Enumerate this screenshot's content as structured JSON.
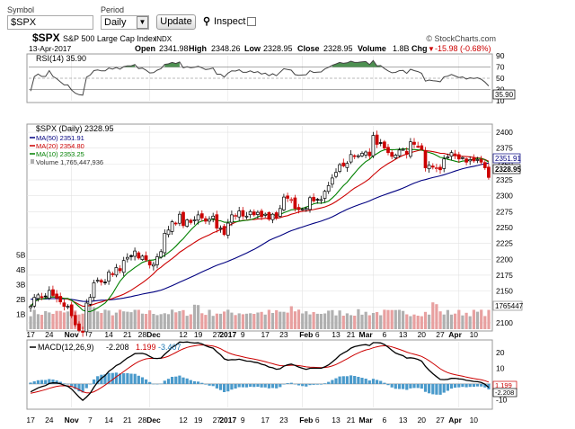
{
  "controls": {
    "symbol_label": "Symbol",
    "symbol_value": "$SPX",
    "period_label": "Period",
    "period_value": "Daily",
    "update_label": "Update",
    "inspect_label": "Inspect"
  },
  "header": {
    "symbol": "$SPX",
    "name": "S&P 500 Large Cap Index",
    "exchange": "INDX",
    "date": "13-Apr-2017",
    "open_label": "Open",
    "open": "2341.98",
    "high_label": "High",
    "high": "2348.26",
    "low_label": "Low",
    "low": "2328.95",
    "close_label": "Close",
    "close": "2328.95",
    "volume_label": "Volume",
    "volume": "1.8B",
    "chg_label": "Chg",
    "chg": "-15.98 (-0.68%)",
    "chg_arrow": "▼",
    "brand": "© StockCharts.com"
  },
  "rsi": {
    "label": "RSI(14) 35.90",
    "value_tag": "35.90",
    "ticks": [
      90,
      70,
      50,
      30,
      10
    ]
  },
  "price": {
    "legend_main": "$SPX (Daily) 2328.95",
    "ma50_label": "MA(50) 2351.91",
    "ma20_label": "MA(20) 2354.80",
    "ma10_label": "MA(10) 2353.25",
    "volume_label": "Volume 1,765,447,936",
    "ma50_tag": "2351.91",
    "close_tag": "2328.95",
    "volume_tag": "1765447",
    "ticks": [
      2400,
      2375,
      2350,
      2325,
      2300,
      2275,
      2250,
      2225,
      2200,
      2175,
      2150,
      2125,
      2100
    ],
    "volume_ticks": [
      "5B",
      "4B",
      "3B",
      "2B",
      "1B"
    ]
  },
  "macd": {
    "label_prefix": "MACD(12,26,9)",
    "macd_value": "-2.208",
    "signal_value": "1.199",
    "hist_value": "-3.407",
    "macd_tag": "-2.208",
    "signal_tag": "1.199",
    "ticks": [
      20,
      10,
      0,
      -10
    ]
  },
  "xaxis": {
    "labels": [
      "17",
      "24",
      "Nov",
      "7",
      "14",
      "21",
      "28",
      "Dec",
      "12",
      "19",
      "27",
      "2017",
      "9",
      "17",
      "23",
      "Feb",
      "6",
      "13",
      "21",
      "Mar",
      "6",
      "13",
      "20",
      "27",
      "Apr",
      "10"
    ],
    "bold": [
      "Nov",
      "Dec",
      "2017",
      "Feb",
      "Mar",
      "Apr"
    ]
  },
  "colors": {
    "up": "#000000",
    "down": "#cc0000",
    "ma50": "#000080",
    "ma20": "#cc0000",
    "ma10": "#008000",
    "rsi_fill": "#2e7d32",
    "macd_line": "#000000",
    "signal_line": "#cc0000",
    "hist": "#4a9acb",
    "volume_up": "#b0b0b0",
    "volume_down": "#e8a0a0",
    "grid": "#e2e2e2"
  },
  "chart_data": {
    "type": "candlestick",
    "symbol": "$SPX",
    "period": "Daily",
    "dates": [
      "2016-10-17",
      "2016-10-18",
      "2016-10-19",
      "2016-10-20",
      "2016-10-21",
      "2016-10-24",
      "2016-10-25",
      "2016-10-26",
      "2016-10-27",
      "2016-10-28",
      "2016-10-31",
      "2016-11-01",
      "2016-11-02",
      "2016-11-03",
      "2016-11-04",
      "2016-11-07",
      "2016-11-08",
      "2016-11-09",
      "2016-11-10",
      "2016-11-11",
      "2016-11-14",
      "2016-11-15",
      "2016-11-16",
      "2016-11-17",
      "2016-11-18",
      "2016-11-21",
      "2016-11-22",
      "2016-11-23",
      "2016-11-25",
      "2016-11-28",
      "2016-11-29",
      "2016-11-30",
      "2016-12-01",
      "2016-12-02",
      "2016-12-05",
      "2016-12-06",
      "2016-12-07",
      "2016-12-08",
      "2016-12-09",
      "2016-12-12",
      "2016-12-13",
      "2016-12-14",
      "2016-12-15",
      "2016-12-16",
      "2016-12-19",
      "2016-12-20",
      "2016-12-21",
      "2016-12-22",
      "2016-12-23",
      "2016-12-27",
      "2016-12-28",
      "2016-12-29",
      "2016-12-30",
      "2017-01-03",
      "2017-01-04",
      "2017-01-05",
      "2017-01-06",
      "2017-01-09",
      "2017-01-10",
      "2017-01-11",
      "2017-01-12",
      "2017-01-13",
      "2017-01-17",
      "2017-01-18",
      "2017-01-19",
      "2017-01-20",
      "2017-01-23",
      "2017-01-24",
      "2017-01-25",
      "2017-01-26",
      "2017-01-27",
      "2017-01-30",
      "2017-01-31",
      "2017-02-01",
      "2017-02-02",
      "2017-02-03",
      "2017-02-06",
      "2017-02-07",
      "2017-02-08",
      "2017-02-09",
      "2017-02-10",
      "2017-02-13",
      "2017-02-14",
      "2017-02-15",
      "2017-02-16",
      "2017-02-17",
      "2017-02-21",
      "2017-02-22",
      "2017-02-23",
      "2017-02-24",
      "2017-02-27",
      "2017-02-28",
      "2017-03-01",
      "2017-03-02",
      "2017-03-03",
      "2017-03-06",
      "2017-03-07",
      "2017-03-08",
      "2017-03-09",
      "2017-03-10",
      "2017-03-13",
      "2017-03-14",
      "2017-03-15",
      "2017-03-16",
      "2017-03-17",
      "2017-03-20",
      "2017-03-21",
      "2017-03-22",
      "2017-03-23",
      "2017-03-24",
      "2017-03-27",
      "2017-03-28",
      "2017-03-29",
      "2017-03-30",
      "2017-03-31",
      "2017-04-03",
      "2017-04-04",
      "2017-04-05",
      "2017-04-06",
      "2017-04-07",
      "2017-04-10",
      "2017-04-11",
      "2017-04-12",
      "2017-04-13"
    ],
    "close": [
      2126,
      2140,
      2144,
      2141,
      2141,
      2151,
      2143,
      2139,
      2133,
      2126,
      2126,
      2111,
      2097,
      2088,
      2085,
      2131,
      2140,
      2163,
      2167,
      2164,
      2164,
      2180,
      2177,
      2187,
      2182,
      2198,
      2203,
      2204,
      2213,
      2202,
      2205,
      2199,
      2191,
      2192,
      2204,
      2212,
      2241,
      2246,
      2259,
      2256,
      2271,
      2253,
      2262,
      2258,
      2262,
      2270,
      2265,
      2260,
      2263,
      2268,
      2249,
      2249,
      2239,
      2257,
      2270,
      2269,
      2276,
      2268,
      2268,
      2275,
      2270,
      2274,
      2267,
      2271,
      2263,
      2271,
      2265,
      2280,
      2298,
      2296,
      2294,
      2280,
      2278,
      2279,
      2280,
      2297,
      2292,
      2293,
      2294,
      2307,
      2316,
      2328,
      2337,
      2349,
      2347,
      2351,
      2365,
      2362,
      2363,
      2367,
      2369,
      2363,
      2395,
      2381,
      2383,
      2375,
      2368,
      2362,
      2364,
      2372,
      2373,
      2365,
      2385,
      2381,
      2378,
      2373,
      2344,
      2348,
      2345,
      2344,
      2341,
      2358,
      2361,
      2368,
      2363,
      2358,
      2360,
      2353,
      2357,
      2355,
      2357,
      2353,
      2344,
      2329
    ],
    "ma50_last": 2351.91,
    "ma20_last": 2354.8,
    "ma10_last": 2353.25,
    "volume_last": 1765447936,
    "rsi_last": 35.9,
    "macd_last": -2.208,
    "signal_last": 1.199,
    "hist_last": -3.407,
    "price_ylim": [
      2090,
      2410
    ],
    "rsi_ylim": [
      10,
      90
    ],
    "macd_ylim": [
      -15,
      27
    ]
  }
}
